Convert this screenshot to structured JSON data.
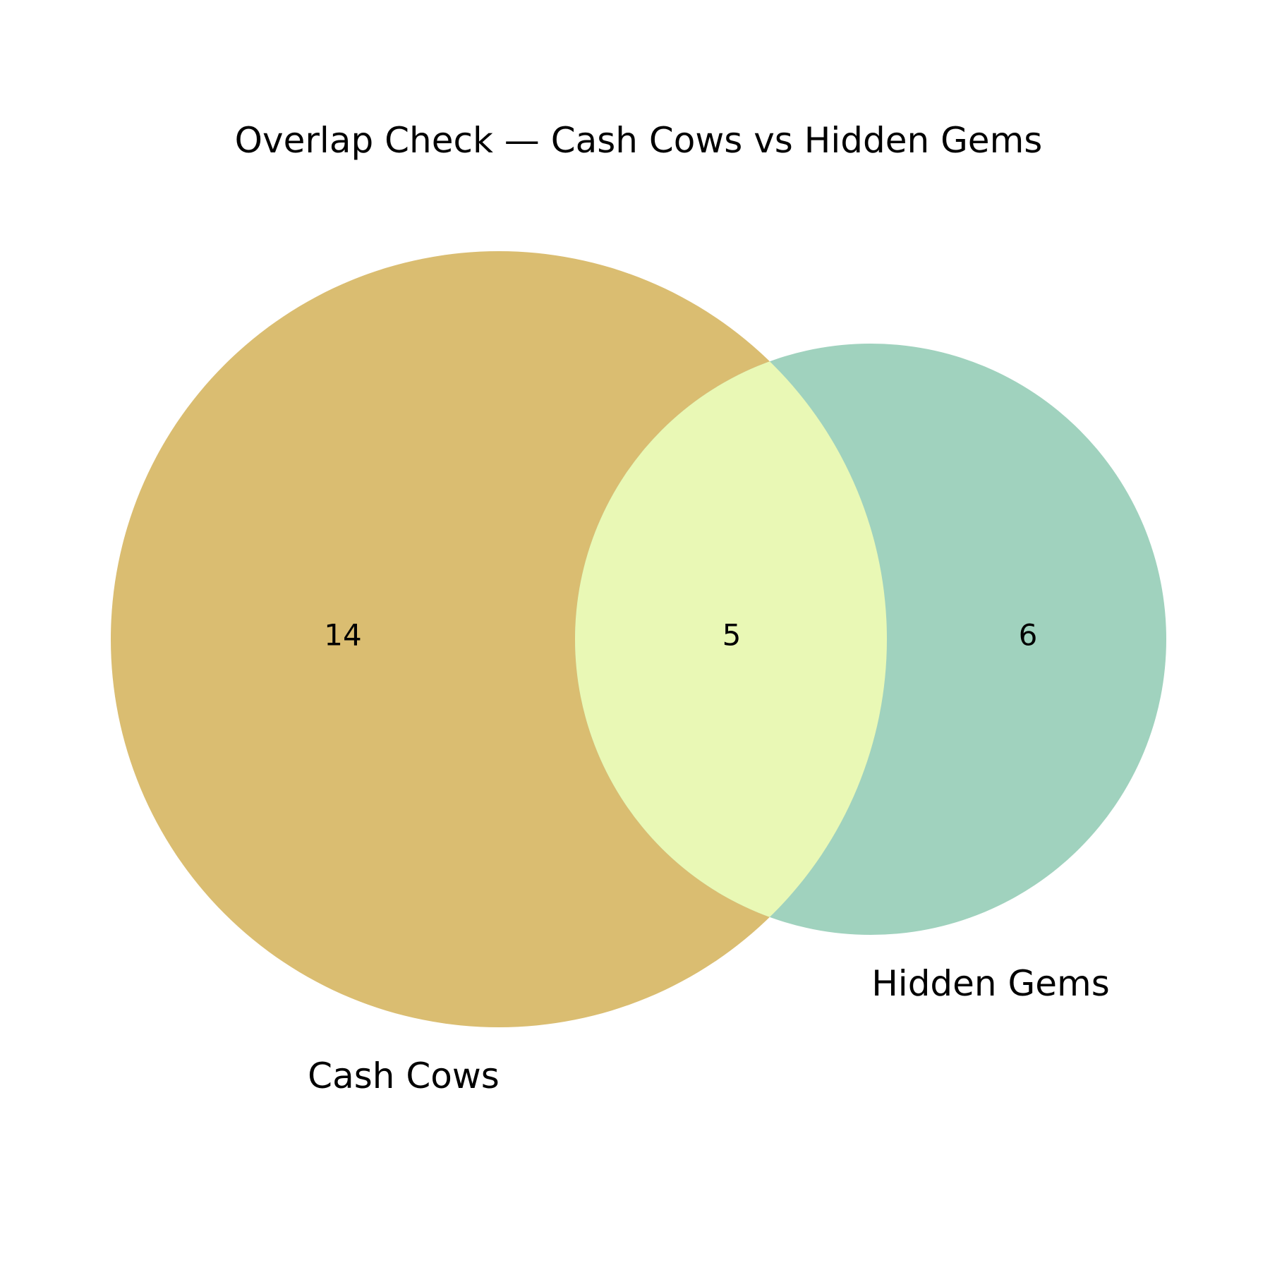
{
  "title": "Overlap Check — Cash Cows vs Hidden Gems",
  "sets": [
    {
      "name": "Cash Cows",
      "count": "14",
      "color": "#dabd71"
    },
    {
      "name": "Hidden Gems",
      "count": "6",
      "color": "#a0d2be"
    }
  ],
  "intersection": {
    "count": "5",
    "color": "#e9f8b5"
  }
}
